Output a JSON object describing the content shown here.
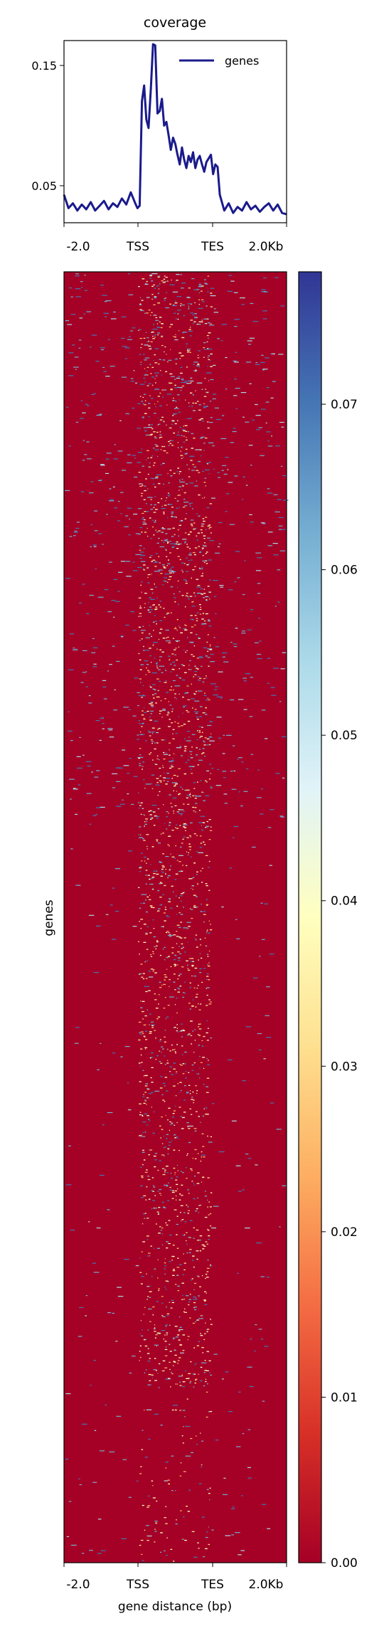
{
  "chart_data": [
    {
      "type": "line",
      "title": "coverage",
      "xlabel": "",
      "ylabel": "",
      "x_ticks": [
        "-2.0",
        "TSS",
        "TES",
        "2.0Kb"
      ],
      "y_ticks": [
        "0.15",
        "0.05"
      ],
      "ylim": [
        0.02,
        0.17
      ],
      "legend": "top-right",
      "series": [
        {
          "name": "genes",
          "color": "#1a1a8c",
          "x": [
            0,
            2,
            4,
            6,
            8,
            10,
            12,
            14,
            16,
            18,
            20,
            22,
            24,
            26,
            28,
            30,
            32,
            33,
            34,
            35,
            36,
            37,
            38,
            39,
            40,
            41,
            42,
            43,
            44,
            45,
            46,
            47,
            48,
            49,
            50,
            51,
            52,
            53,
            54,
            55,
            56,
            57,
            58,
            59,
            60,
            61,
            62,
            63,
            64,
            65,
            66,
            67,
            68,
            69,
            70,
            72,
            74,
            76,
            78,
            80,
            82,
            84,
            86,
            88,
            90,
            92,
            94,
            96,
            98,
            100
          ],
          "y": [
            0.043,
            0.032,
            0.036,
            0.03,
            0.035,
            0.031,
            0.037,
            0.03,
            0.034,
            0.038,
            0.031,
            0.036,
            0.033,
            0.04,
            0.035,
            0.045,
            0.036,
            0.032,
            0.034,
            0.12,
            0.133,
            0.105,
            0.098,
            0.13,
            0.167,
            0.166,
            0.11,
            0.112,
            0.122,
            0.1,
            0.103,
            0.092,
            0.08,
            0.09,
            0.085,
            0.076,
            0.068,
            0.082,
            0.072,
            0.065,
            0.075,
            0.07,
            0.078,
            0.065,
            0.072,
            0.075,
            0.068,
            0.062,
            0.07,
            0.073,
            0.076,
            0.06,
            0.068,
            0.066,
            0.043,
            0.03,
            0.036,
            0.028,
            0.033,
            0.03,
            0.037,
            0.031,
            0.034,
            0.029,
            0.033,
            0.036,
            0.03,
            0.035,
            0.028,
            0.027
          ]
        }
      ]
    },
    {
      "type": "heatmap",
      "xlabel": "gene distance (bp)",
      "ylabel": "genes",
      "x_ticks": [
        "-2.0",
        "TSS",
        "TES",
        "2.0Kb"
      ],
      "colormap": "RdYlBu",
      "colorbar": {
        "range": [
          0.0,
          0.078
        ],
        "ticks": [
          {
            "value": 0.0,
            "label": "0.00"
          },
          {
            "value": 0.01,
            "label": "0.01"
          },
          {
            "value": 0.02,
            "label": "0.02"
          },
          {
            "value": 0.03,
            "label": "0.03"
          },
          {
            "value": 0.04,
            "label": "0.04"
          },
          {
            "value": 0.05,
            "label": "0.05"
          },
          {
            "value": 0.06,
            "label": "0.06"
          },
          {
            "value": 0.07,
            "label": "0.07"
          }
        ],
        "colors": [
          "#a50026",
          "#d73027",
          "#f46d43",
          "#fdae61",
          "#fee090",
          "#ffffbf",
          "#e0f3f8",
          "#abd9e9",
          "#74add1",
          "#4575b4",
          "#313695"
        ]
      },
      "background_value": 0.0,
      "background_color": "#a50026"
    }
  ]
}
